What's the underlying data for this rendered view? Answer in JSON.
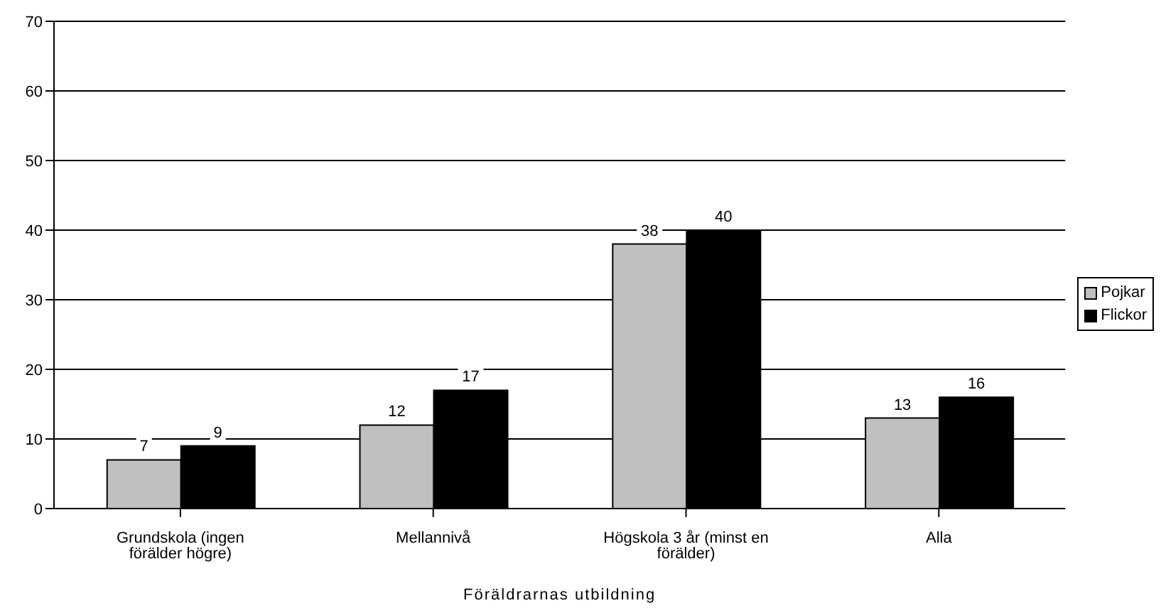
{
  "chart_data": {
    "type": "bar",
    "xlabel": "Föräldrarnas utbildning",
    "categories": [
      "Grundskola (ingen förälder högre)",
      "Mellannivå",
      "Högskola 3 år (minst en förälder)",
      "Alla"
    ],
    "series": [
      {
        "name": "Pojkar",
        "color": "#c0c0c0",
        "values": [
          7,
          12,
          38,
          13
        ]
      },
      {
        "name": "Flickor",
        "color": "#000000",
        "values": [
          9,
          17,
          40,
          16
        ]
      }
    ],
    "ylim": [
      0,
      70
    ],
    "yticks": [
      0,
      10,
      20,
      30,
      40,
      50,
      60,
      70
    ],
    "grid": "y",
    "legend": "right",
    "data_labels": true
  }
}
